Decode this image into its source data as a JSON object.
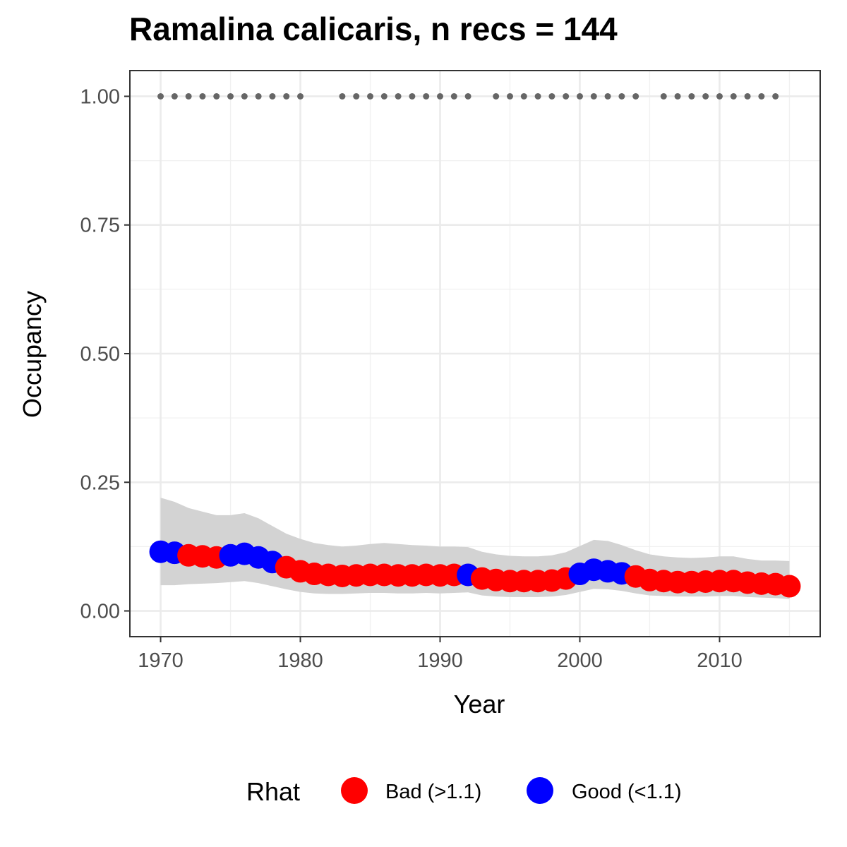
{
  "chart_data": {
    "type": "line",
    "title": "Ramalina calicaris, n recs = 144",
    "xlabel": "Year",
    "ylabel": "Occupancy",
    "xlim": [
      1967.8,
      2017.2
    ],
    "ylim": [
      -0.05,
      1.05
    ],
    "x_ticks": [
      1970,
      1980,
      1990,
      2000,
      2010
    ],
    "y_ticks": [
      0.0,
      0.25,
      0.5,
      0.75,
      1.0
    ],
    "y_tick_labels": [
      "0.00",
      "0.25",
      "0.50",
      "0.75",
      "1.00"
    ],
    "grid": true,
    "legend": {
      "title": "Rhat",
      "position": "bottom",
      "entries": [
        {
          "label": "Bad (>1.1)",
          "color": "#ff0000"
        },
        {
          "label": "Good (<1.1)",
          "color": "#0000ff"
        }
      ]
    },
    "colors": {
      "bad": "#ff0000",
      "good": "#0000ff",
      "ribbon": "#d3d3d3",
      "records": "#666666"
    },
    "series": [
      {
        "x": [
          1970,
          1971,
          1972,
          1973,
          1974,
          1975,
          1976,
          1977,
          1978,
          1979,
          1980,
          1981,
          1982,
          1983,
          1984,
          1985,
          1986,
          1987,
          1988,
          1989,
          1990,
          1991,
          1992,
          1993,
          1994,
          1995,
          1996,
          1997,
          1998,
          1999,
          2000,
          2001,
          2002,
          2003,
          2004,
          2005,
          2006,
          2007,
          2008,
          2009,
          2010,
          2011,
          2012,
          2013,
          2014,
          2015
        ],
        "y": [
          0.115,
          0.113,
          0.108,
          0.106,
          0.104,
          0.108,
          0.111,
          0.104,
          0.095,
          0.085,
          0.077,
          0.072,
          0.07,
          0.068,
          0.069,
          0.07,
          0.07,
          0.069,
          0.069,
          0.07,
          0.069,
          0.07,
          0.07,
          0.063,
          0.06,
          0.058,
          0.058,
          0.058,
          0.059,
          0.063,
          0.072,
          0.08,
          0.077,
          0.073,
          0.067,
          0.06,
          0.058,
          0.056,
          0.056,
          0.057,
          0.058,
          0.058,
          0.055,
          0.053,
          0.052,
          0.048
        ],
        "rhat": [
          "Good",
          "Good",
          "Bad",
          "Bad",
          "Bad",
          "Good",
          "Good",
          "Good",
          "Good",
          "Bad",
          "Bad",
          "Bad",
          "Bad",
          "Bad",
          "Bad",
          "Bad",
          "Bad",
          "Bad",
          "Bad",
          "Bad",
          "Bad",
          "Bad",
          "Good",
          "Bad",
          "Bad",
          "Bad",
          "Bad",
          "Bad",
          "Bad",
          "Bad",
          "Good",
          "Good",
          "Good",
          "Good",
          "Bad",
          "Bad",
          "Bad",
          "Bad",
          "Bad",
          "Bad",
          "Bad",
          "Bad",
          "Bad",
          "Bad",
          "Bad",
          "Bad"
        ],
        "lower": [
          0.05,
          0.05,
          0.052,
          0.053,
          0.054,
          0.056,
          0.058,
          0.054,
          0.048,
          0.042,
          0.037,
          0.034,
          0.033,
          0.033,
          0.034,
          0.035,
          0.035,
          0.034,
          0.034,
          0.035,
          0.034,
          0.035,
          0.036,
          0.03,
          0.028,
          0.027,
          0.027,
          0.027,
          0.028,
          0.031,
          0.037,
          0.043,
          0.042,
          0.039,
          0.034,
          0.03,
          0.029,
          0.028,
          0.028,
          0.028,
          0.029,
          0.029,
          0.027,
          0.026,
          0.025,
          0.023
        ],
        "upper": [
          0.22,
          0.212,
          0.2,
          0.193,
          0.186,
          0.186,
          0.19,
          0.18,
          0.165,
          0.15,
          0.14,
          0.132,
          0.128,
          0.125,
          0.127,
          0.13,
          0.132,
          0.13,
          0.128,
          0.127,
          0.125,
          0.125,
          0.124,
          0.115,
          0.11,
          0.107,
          0.106,
          0.106,
          0.108,
          0.114,
          0.126,
          0.138,
          0.136,
          0.128,
          0.118,
          0.11,
          0.106,
          0.104,
          0.103,
          0.104,
          0.106,
          0.106,
          0.101,
          0.098,
          0.098,
          0.097
        ]
      }
    ],
    "record_years": [
      1970,
      1971,
      1972,
      1973,
      1974,
      1975,
      1976,
      1977,
      1978,
      1979,
      1980,
      1983,
      1984,
      1985,
      1986,
      1987,
      1988,
      1989,
      1990,
      1991,
      1992,
      1994,
      1995,
      1996,
      1997,
      1998,
      1999,
      2000,
      2001,
      2002,
      2003,
      2004,
      2006,
      2007,
      2008,
      2009,
      2010,
      2011,
      2012,
      2013,
      2014
    ],
    "record_value": 1.0
  }
}
